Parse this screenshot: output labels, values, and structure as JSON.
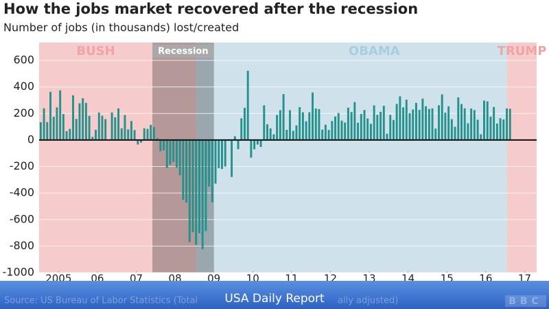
{
  "chart_data": {
    "type": "bar",
    "title": "How the jobs market recovered after the recession",
    "subtitle": "Number of jobs (in thousands) lost/created",
    "color": "#23918c",
    "grid": true,
    "ylim": [
      -1000,
      600
    ],
    "yticks": [
      -1000,
      -800,
      -600,
      -400,
      -200,
      0,
      200,
      400,
      600
    ],
    "xlim": [
      2005,
      2017.81
    ],
    "xticks": [
      {
        "value": 2005.5,
        "label": "2005"
      },
      {
        "value": 2006.5,
        "label": "06"
      },
      {
        "value": 2007.5,
        "label": "07"
      },
      {
        "value": 2008.5,
        "label": "08"
      },
      {
        "value": 2009.5,
        "label": "09"
      },
      {
        "value": 2010.5,
        "label": "10"
      },
      {
        "value": 2011.5,
        "label": "11"
      },
      {
        "value": 2012.5,
        "label": "12"
      },
      {
        "value": 2013.5,
        "label": "13"
      },
      {
        "value": 2014.5,
        "label": "14"
      },
      {
        "value": 2015.5,
        "label": "15"
      },
      {
        "value": 2016.5,
        "label": "16"
      },
      {
        "value": 2017.5,
        "label": "17"
      }
    ],
    "periods": [
      {
        "label": "BUSH",
        "start": 2005,
        "end": 2009.05,
        "color": "#f6cbcb",
        "label_color": "#f1a4a4"
      },
      {
        "label": "OBAMA",
        "start": 2009.05,
        "end": 2017.05,
        "color": "#cfe2ec",
        "label_color": "#a9cde0"
      },
      {
        "label": "TRUMP",
        "start": 2017.05,
        "end": 2017.81,
        "color": "#f6cbcb",
        "label_color": "#f1a4a4"
      }
    ],
    "recession": {
      "label": "Recession",
      "start": 2007.917,
      "end": 2009.5
    },
    "x": [
      2005.042,
      2005.125,
      2005.208,
      2005.292,
      2005.375,
      2005.458,
      2005.542,
      2005.625,
      2005.708,
      2005.792,
      2005.875,
      2005.958,
      2006.042,
      2006.125,
      2006.208,
      2006.292,
      2006.375,
      2006.458,
      2006.542,
      2006.625,
      2006.708,
      2006.792,
      2006.875,
      2006.958,
      2007.042,
      2007.125,
      2007.208,
      2007.292,
      2007.375,
      2007.458,
      2007.542,
      2007.625,
      2007.708,
      2007.792,
      2007.875,
      2007.958,
      2008.042,
      2008.125,
      2008.208,
      2008.292,
      2008.375,
      2008.458,
      2008.542,
      2008.625,
      2008.708,
      2008.792,
      2008.875,
      2008.958,
      2009.042,
      2009.125,
      2009.208,
      2009.292,
      2009.375,
      2009.458,
      2009.542,
      2009.625,
      2009.708,
      2009.792,
      2009.875,
      2009.958,
      2010.042,
      2010.125,
      2010.208,
      2010.292,
      2010.375,
      2010.458,
      2010.542,
      2010.625,
      2010.708,
      2010.792,
      2010.875,
      2010.958,
      2011.042,
      2011.125,
      2011.208,
      2011.292,
      2011.375,
      2011.458,
      2011.542,
      2011.625,
      2011.708,
      2011.792,
      2011.875,
      2011.958,
      2012.042,
      2012.125,
      2012.208,
      2012.292,
      2012.375,
      2012.458,
      2012.542,
      2012.625,
      2012.708,
      2012.792,
      2012.875,
      2012.958,
      2013.042,
      2013.125,
      2013.208,
      2013.292,
      2013.375,
      2013.458,
      2013.542,
      2013.625,
      2013.708,
      2013.792,
      2013.875,
      2013.958,
      2014.042,
      2014.125,
      2014.208,
      2014.292,
      2014.375,
      2014.458,
      2014.542,
      2014.625,
      2014.708,
      2014.792,
      2014.875,
      2014.958,
      2015.042,
      2015.125,
      2015.208,
      2015.292,
      2015.375,
      2015.458,
      2015.542,
      2015.625,
      2015.708,
      2015.792,
      2015.875,
      2015.958,
      2016.042,
      2016.125,
      2016.208,
      2016.292,
      2016.375,
      2016.458,
      2016.542,
      2016.625,
      2016.708,
      2016.792,
      2016.875,
      2016.958,
      2017.042,
      2017.125
    ],
    "values": [
      134,
      239,
      135,
      363,
      175,
      246,
      374,
      196,
      67,
      84,
      337,
      159,
      277,
      315,
      280,
      182,
      23,
      77,
      207,
      183,
      157,
      4,
      208,
      171,
      238,
      88,
      188,
      80,
      143,
      75,
      -34,
      -20,
      88,
      84,
      114,
      97,
      13,
      -85,
      -78,
      -211,
      -185,
      -165,
      -209,
      -266,
      -452,
      -473,
      -769,
      -695,
      -791,
      -703,
      -823,
      -686,
      -351,
      -470,
      -329,
      -212,
      -219,
      -200,
      -7,
      -279,
      28,
      -69,
      163,
      243,
      522,
      -133,
      -70,
      -34,
      -52,
      262,
      119,
      87,
      43,
      189,
      225,
      346,
      77,
      225,
      69,
      110,
      248,
      209,
      141,
      209,
      358,
      237,
      233,
      78,
      115,
      76,
      143,
      177,
      203,
      146,
      132,
      244,
      211,
      286,
      130,
      197,
      226,
      162,
      122,
      261,
      190,
      212,
      258,
      47,
      190,
      151,
      272,
      329,
      246,
      304,
      202,
      230,
      280,
      227,
      312,
      255,
      234,
      238,
      86,
      262,
      344,
      206,
      254,
      157,
      100,
      321,
      272,
      239,
      126,
      237,
      225,
      153,
      43,
      297,
      291,
      176,
      249,
      124,
      164,
      155,
      238,
      235
    ],
    "source_fragments": [
      "Source: US Bureau of Labor Statistics (Total",
      "ally adjusted)"
    ],
    "logo": "BBC"
  },
  "overlay": {
    "banner": "USA Daily Report"
  }
}
